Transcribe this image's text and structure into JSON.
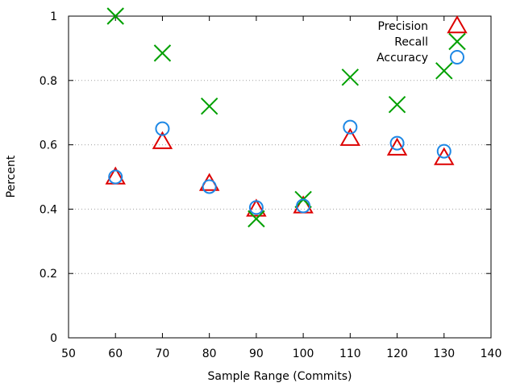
{
  "chart_data": {
    "type": "scatter",
    "title": "",
    "xlabel": "Sample Range (Commits)",
    "ylabel": "Percent",
    "xlim": [
      50,
      140
    ],
    "ylim": [
      0,
      1
    ],
    "x_ticks": [
      50,
      60,
      70,
      80,
      90,
      100,
      110,
      120,
      130,
      140
    ],
    "y_ticks": [
      0,
      0.2,
      0.4,
      0.6,
      0.8,
      1
    ],
    "x_tick_labels": [
      "50",
      "60",
      "70",
      "80",
      "90",
      "100",
      "110",
      "120",
      "130",
      "140"
    ],
    "y_tick_labels": [
      "0",
      "0.2",
      "0.4",
      "0.6",
      "0.8",
      "1"
    ],
    "grid": "horizontal dotted",
    "legend_position": "top-right",
    "x": [
      60,
      70,
      80,
      90,
      100,
      110,
      120,
      130
    ],
    "series": [
      {
        "name": "Precision",
        "marker": "triangle",
        "color": "#dd0000",
        "values": [
          0.5,
          0.61,
          0.48,
          0.4,
          0.41,
          0.62,
          0.59,
          0.56
        ]
      },
      {
        "name": "Recall",
        "marker": "cross",
        "color": "#00a000",
        "values": [
          1.0,
          0.885,
          0.72,
          0.37,
          0.43,
          0.81,
          0.725,
          0.83
        ]
      },
      {
        "name": "Accuracy",
        "marker": "circle",
        "color": "#1e88e5",
        "values": [
          0.5,
          0.65,
          0.47,
          0.405,
          0.41,
          0.655,
          0.605,
          0.58
        ]
      }
    ]
  }
}
